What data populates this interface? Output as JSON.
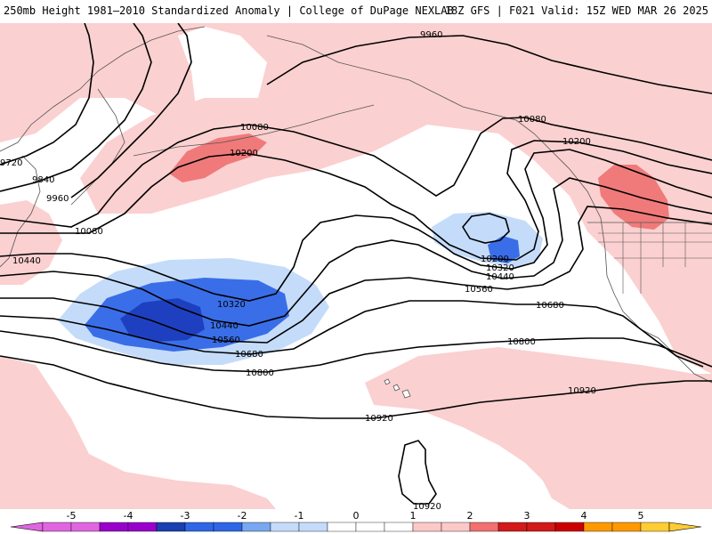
{
  "header": {
    "title_left": "250mb Height 1981–2010 Standardized Anomaly | College of DuPage NEXLAB",
    "title_right": "18Z GFS | F021 Valid: 15Z WED MAR 26 2025"
  },
  "contour_labels": {
    "h9960": "9960",
    "h9960w": "9960",
    "h9840": "9840",
    "h9720": "9720",
    "h10080a": "10080",
    "h10080b": "10080",
    "h10080c": "10080",
    "h10200a": "10200",
    "h10200b": "10200",
    "h10200c": "10200",
    "h10320a": "10320",
    "h10320b": "10320",
    "h10440a": "10440",
    "h10440b": "10440",
    "h10440c": "10440",
    "h10560a": "10560",
    "h10560b": "10560",
    "h10680a": "10680",
    "h10680b": "10680",
    "h10800a": "10800",
    "h10800b": "10800",
    "h10920a": "10920",
    "h10920b": "10920",
    "h10920c": "10920"
  },
  "colorbar": {
    "ticks": [
      "-5",
      "-4",
      "-3",
      "-2",
      "-1",
      "0",
      "1",
      "2",
      "3",
      "4",
      "5"
    ],
    "colors": [
      "#e066e0",
      "#9900cc",
      "#1a3fb0",
      "#2e66e6",
      "#78a8f0",
      "#c4dcfa",
      "#ffffff",
      "#ffffff",
      "#fcc8c8",
      "#f37070",
      "#d21a1a",
      "#cc0000",
      "#ff9900",
      "#ffcc33"
    ]
  },
  "anomaly_colors": {
    "light_red": "#fbd0d0",
    "mid_red": "#f07a7a",
    "light_blue": "#c4dcfa",
    "mid_blue": "#3a6ee8",
    "dark_blue": "#1e40c0"
  }
}
